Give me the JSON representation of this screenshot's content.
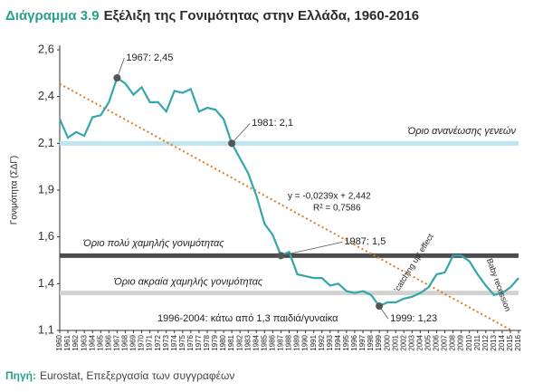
{
  "chart_data": {
    "type": "line",
    "title_prefix": "Διάγραμμα 3.9",
    "title": "Εξέλιξη της Γονιμότητας στην Ελλάδα, 1960-2016",
    "y_label": "Γονιμότητα (ΣΔΓ)",
    "source_label": "Πηγή:",
    "source": "Eurostat, Επεξεργασία των συγγραφέων",
    "color": "#34a7ac",
    "categories": [
      "1960",
      "1961",
      "1962",
      "1963",
      "1964",
      "1965",
      "1966",
      "1967",
      "1968",
      "1969",
      "1970",
      "1971",
      "1972",
      "1973",
      "1974",
      "1975",
      "1976",
      "1977",
      "1978",
      "1979",
      "1980",
      "1981",
      "1982",
      "1983",
      "1984",
      "1985",
      "1986",
      "1987",
      "1988",
      "1989",
      "1990",
      "1991",
      "1992",
      "1993",
      "1994",
      "1995",
      "1996",
      "1997",
      "1998",
      "1999",
      "2000",
      "2001",
      "2002",
      "2003",
      "2004",
      "2005",
      "2006",
      "2007",
      "2008",
      "2009",
      "2010",
      "2011",
      "2012",
      "2013",
      "2014",
      "2015",
      "2016"
    ],
    "values": [
      2.23,
      2.13,
      2.16,
      2.14,
      2.24,
      2.25,
      2.32,
      2.45,
      2.42,
      2.36,
      2.4,
      2.32,
      2.32,
      2.27,
      2.38,
      2.37,
      2.39,
      2.27,
      2.29,
      2.28,
      2.23,
      2.1,
      2.02,
      1.94,
      1.82,
      1.67,
      1.61,
      1.5,
      1.52,
      1.4,
      1.39,
      1.38,
      1.38,
      1.34,
      1.35,
      1.31,
      1.3,
      1.31,
      1.29,
      1.23,
      1.25,
      1.25,
      1.27,
      1.28,
      1.3,
      1.33,
      1.4,
      1.41,
      1.5,
      1.5,
      1.47,
      1.4,
      1.34,
      1.29,
      1.3,
      1.33,
      1.38
    ],
    "ylim": [
      1.1,
      2.6
    ],
    "yticks": [
      {
        "value": 1.1,
        "label": "1,1"
      },
      {
        "value": 1.35,
        "label": "1,4"
      },
      {
        "value": 1.6,
        "label": "1,6"
      },
      {
        "value": 1.85,
        "label": "1,9"
      },
      {
        "value": 2.1,
        "label": "2,1"
      },
      {
        "value": 2.35,
        "label": "2,4"
      },
      {
        "value": 2.6,
        "label": "2,6"
      }
    ],
    "grid": false,
    "reference_lines": [
      {
        "value": 2.1,
        "label": "Όριο ανανέωσης γενεών",
        "color": "#bfe5ee"
      },
      {
        "value": 1.5,
        "label": "Όριο πολύ χαμηλής γονιμότητας",
        "color": "#4d4d4f"
      },
      {
        "value": 1.3,
        "label": "Όριο ακραία χαμηλής γονιμότητας",
        "color": "#d2d2d2"
      }
    ],
    "trend": {
      "color": "#e07b22",
      "slope": -0.0239,
      "intercept": 2.442,
      "label": "y = -0,0239x + 2,442",
      "r2_label": "R² = 0,7586"
    },
    "annotations": [
      {
        "x": "1967",
        "label": "1967: 2,45"
      },
      {
        "x": "1981",
        "label": "1981: 2,1"
      },
      {
        "x": "1987",
        "label": "1987: 1,5"
      },
      {
        "x": "1999",
        "label": "1999: 1,23"
      }
    ],
    "notes": [
      "1996-2004: κάτω από 1,3 παιδιά/γυναίκα",
      "'catching up' effect",
      "Baby recession"
    ]
  }
}
